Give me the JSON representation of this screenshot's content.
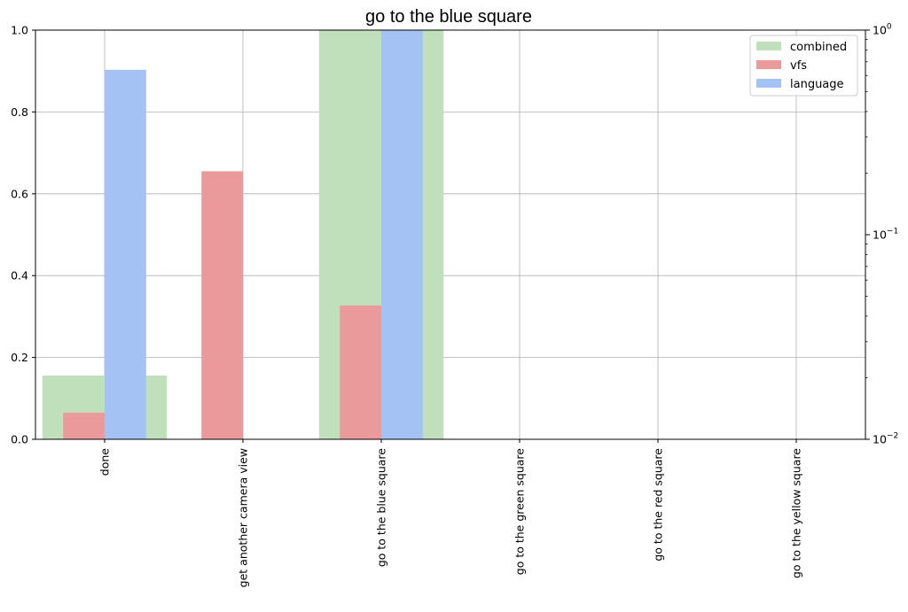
{
  "chart_data": {
    "type": "bar",
    "title": "go to the blue square",
    "categories": [
      "done",
      "get another camera view",
      "go to the blue square",
      "go to the green square",
      "go to the red square",
      "go to the yellow square"
    ],
    "series": [
      {
        "name": "combined",
        "values": [
          0.0205,
          0.0001,
          1.0,
          0.0,
          0.0,
          0.0
        ],
        "color": "#c0e0bc",
        "axis": "right-log"
      },
      {
        "name": "vfs",
        "values": [
          0.065,
          0.655,
          0.327,
          0.0,
          0.0,
          0.0
        ],
        "color": "#ea9a9a",
        "axis": "left-linear"
      },
      {
        "name": "language",
        "values": [
          0.903,
          0.001,
          1.0,
          0.0,
          0.0,
          0.0
        ],
        "color": "#a4c2f4",
        "axis": "left-linear"
      }
    ],
    "ylim_left": [
      0,
      1.0
    ],
    "yticks_left": [
      "0.0",
      "0.2",
      "0.4",
      "0.6",
      "0.8",
      "1.0"
    ],
    "ylim_right_log": [
      0.01,
      1.0
    ],
    "yticks_right": [
      {
        "base": "10",
        "exp": "−2"
      },
      {
        "base": "10",
        "exp": "−1"
      },
      {
        "base": "10",
        "exp": "0"
      }
    ],
    "xlabel": "",
    "ylabel": "",
    "grid": true,
    "legend_position": "top-right"
  }
}
